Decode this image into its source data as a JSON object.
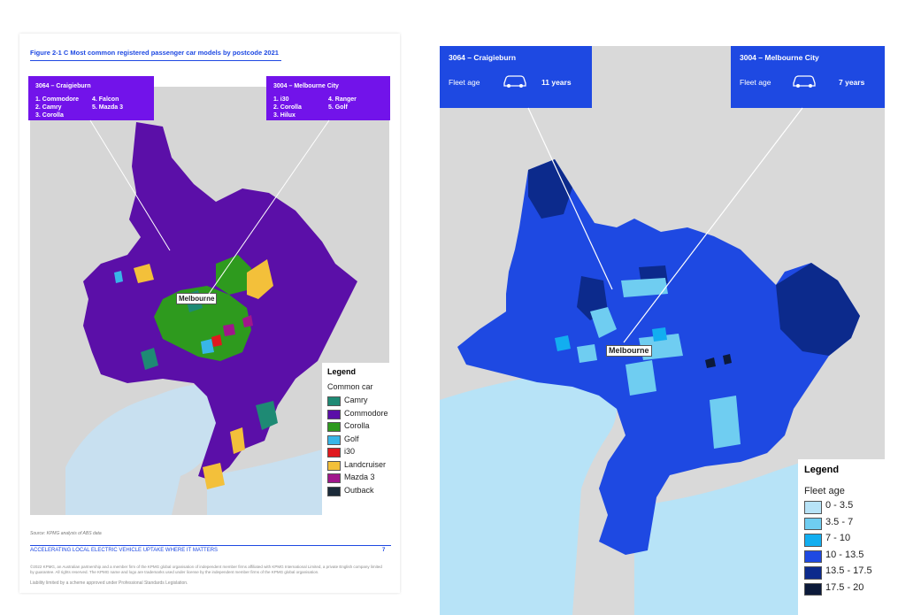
{
  "left": {
    "figure_title": "Figure 2-1 C Most common registered passenger car models by postcode 2021",
    "callout_left": {
      "heading": "3064 – Craigieburn",
      "items": [
        "1. Commodore",
        "2. Camry",
        "3. Corolla",
        "4. Falcon",
        "5. Mazda 3"
      ]
    },
    "callout_right": {
      "heading": "3004 – Melbourne City",
      "items": [
        "1. i30",
        "2. Corolla",
        "3. Hilux",
        "4. Ranger",
        "5. Golf"
      ]
    },
    "city_label": "Melbourne",
    "legend": {
      "title": "Legend",
      "subtitle": "Common car",
      "entries": [
        {
          "label": "Camry",
          "color": "#1e8a74"
        },
        {
          "label": "Commodore",
          "color": "#5b0fa8"
        },
        {
          "label": "Corolla",
          "color": "#2e9a1e"
        },
        {
          "label": "Golf",
          "color": "#38b6e8"
        },
        {
          "label": "i30",
          "color": "#e0191e"
        },
        {
          "label": "Landcruiser",
          "color": "#f3c03a"
        },
        {
          "label": "Mazda 3",
          "color": "#a0168c"
        },
        {
          "label": "Outback",
          "color": "#1c2b3a"
        }
      ]
    },
    "source": "Source: KPMG analysis of ABS data",
    "footer_heading": "ACCELERATING LOCAL ELECTRIC VEHICLE UPTAKE WHERE IT MATTERS",
    "page_number": "7",
    "footer_legal_1": "©2022 KPMG, an Australian partnership and a member firm of the KPMG global organisation of independent member firms affiliated with KPMG International Limited, a private English company limited by guarantee. All rights reserved. The KPMG name and logo are trademarks used under license by the independent member firms of the KPMG global organisation.",
    "footer_legal_2": "Liability limited by a scheme approved under Professional Standards Legislation."
  },
  "right": {
    "callout_left": {
      "heading": "3064 – Craigieburn",
      "label": "Fleet age",
      "value": "11 years",
      "icon": "car-icon"
    },
    "callout_right": {
      "heading": "3004 – Melbourne City",
      "label": "Fleet age",
      "value": "7 years",
      "icon": "car-icon"
    },
    "city_label": "Melbourne",
    "legend": {
      "title": "Legend",
      "subtitle": "Fleet age",
      "entries": [
        {
          "label": "0 - 3.5",
          "color": "#b7e3f7"
        },
        {
          "label": "3.5 - 7",
          "color": "#6fcdf1"
        },
        {
          "label": "7 - 10",
          "color": "#12aef0"
        },
        {
          "label": "10 - 13.5",
          "color": "#1e49e2"
        },
        {
          "label": "13.5 - 17.5",
          "color": "#0c2a8c"
        },
        {
          "label": "17.5 - 20",
          "color": "#0c1a3a"
        }
      ]
    }
  }
}
